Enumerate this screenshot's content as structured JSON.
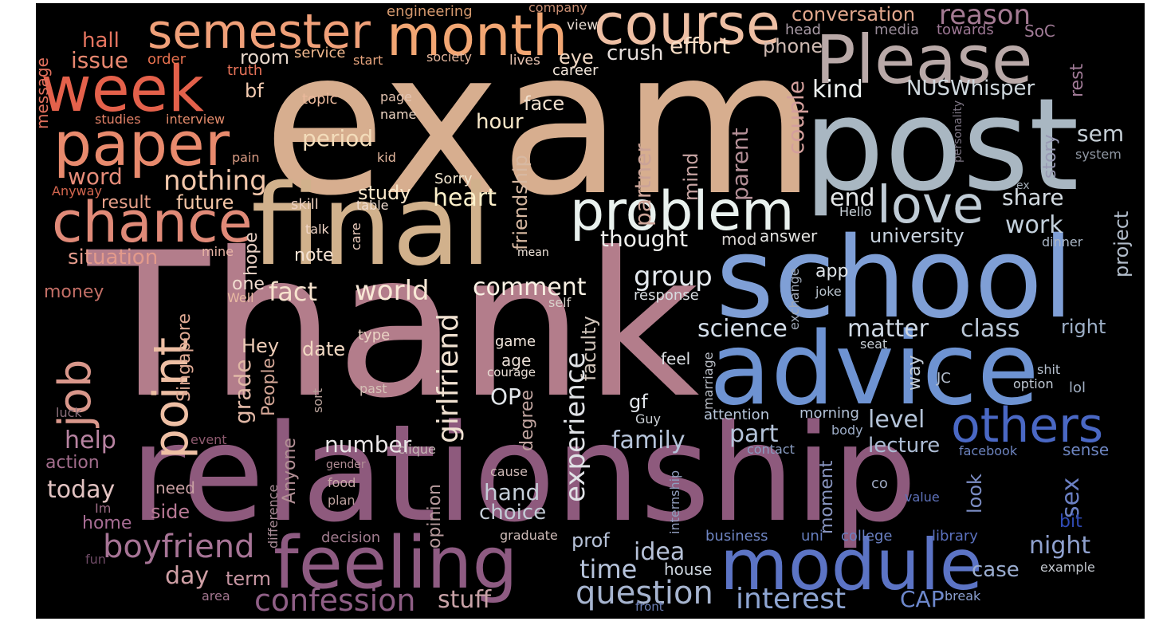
{
  "cloud": {
    "words": [
      {
        "text": "exam",
        "color": "#d7ae8f"
      },
      {
        "text": "Thank",
        "color": "#b37d8b"
      },
      {
        "text": "relationship",
        "color": "#8e5a7d"
      },
      {
        "text": "post",
        "color": "#a9b7c2"
      },
      {
        "text": "school",
        "color": "#7f9fd6"
      },
      {
        "text": "advice",
        "color": "#6e93d2"
      },
      {
        "text": "final",
        "color": "#d1b18c"
      },
      {
        "text": "Please",
        "color": "#b9a9a8"
      },
      {
        "text": "module",
        "color": "#5c74c5"
      },
      {
        "text": "feeling",
        "color": "#8e5b82"
      },
      {
        "text": "week",
        "color": "#e4614b"
      },
      {
        "text": "paper",
        "color": "#e88a6d"
      },
      {
        "text": "month",
        "color": "#f2a673"
      },
      {
        "text": "semester",
        "color": "#f0a079"
      },
      {
        "text": "course",
        "color": "#eebfa4"
      },
      {
        "text": "chance",
        "color": "#e08a78"
      },
      {
        "text": "problem",
        "color": "#e9f1ee"
      },
      {
        "text": "love",
        "color": "#c0ccd6"
      },
      {
        "text": "others",
        "color": "#4a68c4"
      },
      {
        "text": "point",
        "color": "#eebfa4"
      },
      {
        "text": "job",
        "color": "#d9978b"
      },
      {
        "text": "boyfriend",
        "color": "#a77496"
      },
      {
        "text": "confession",
        "color": "#8f5f86"
      },
      {
        "text": "question",
        "color": "#a6b4cf"
      },
      {
        "text": "interest",
        "color": "#8fa6d3"
      },
      {
        "text": "conversation",
        "color": "#e2a88e"
      },
      {
        "text": "reason",
        "color": "#a47a93"
      },
      {
        "text": "issue",
        "color": "#e98870"
      },
      {
        "text": "hall",
        "color": "#e87661"
      },
      {
        "text": "engineering",
        "color": "#d69a6f"
      },
      {
        "text": "company",
        "color": "#cb8f73"
      },
      {
        "text": "eye",
        "color": "#f1d8c3"
      },
      {
        "text": "crush",
        "color": "#e7dfdc"
      },
      {
        "text": "effort",
        "color": "#f7ddc6"
      },
      {
        "text": "phone",
        "color": "#cfbab2"
      },
      {
        "text": "head",
        "color": "#a89aa5"
      },
      {
        "text": "media",
        "color": "#9a8c9a"
      },
      {
        "text": "towards",
        "color": "#9c7693"
      },
      {
        "text": "SoC",
        "color": "#a17b97"
      },
      {
        "text": "rest",
        "color": "#a17b97"
      },
      {
        "text": "order",
        "color": "#e7714f"
      },
      {
        "text": "service",
        "color": "#f1b98e"
      },
      {
        "text": "start",
        "color": "#e8a57e"
      },
      {
        "text": "society",
        "color": "#e5b79e"
      },
      {
        "text": "lives",
        "color": "#e6c2b0"
      },
      {
        "text": "career",
        "color": "#f2e6da"
      },
      {
        "text": "view",
        "color": "#e7dcd2"
      },
      {
        "text": "room",
        "color": "#e7d7cb"
      },
      {
        "text": "truth",
        "color": "#e87359"
      },
      {
        "text": "message",
        "color": "#e0705d"
      },
      {
        "text": "bf",
        "color": "#f3cbb1"
      },
      {
        "text": "topic",
        "color": "#ebb99c"
      },
      {
        "text": "page",
        "color": "#e4c4b1"
      },
      {
        "text": "name",
        "color": "#eed6c4"
      },
      {
        "text": "studies",
        "color": "#e38268"
      },
      {
        "text": "interview",
        "color": "#e58c6c"
      },
      {
        "text": "kind",
        "color": "#eef2f1"
      },
      {
        "text": "NUSWhisper",
        "color": "#cfd8de"
      },
      {
        "text": "couple",
        "color": "#d39f9c"
      },
      {
        "text": "face",
        "color": "#f2e1cf"
      },
      {
        "text": "hour",
        "color": "#f8e8c9"
      },
      {
        "text": "period",
        "color": "#f3dcba"
      },
      {
        "text": "word",
        "color": "#e68c79"
      },
      {
        "text": "nothing",
        "color": "#f2c7ab"
      },
      {
        "text": "kid",
        "color": "#e5b89f"
      },
      {
        "text": "pain",
        "color": "#d99b83"
      },
      {
        "text": "Anyway",
        "color": "#d2654e"
      },
      {
        "text": "result",
        "color": "#e8a18a"
      },
      {
        "text": "future",
        "color": "#f4c6a6"
      },
      {
        "text": "skill",
        "color": "#edd0c0"
      },
      {
        "text": "table",
        "color": "#f0ddd1"
      },
      {
        "text": "Sorry",
        "color": "#f3e7d0"
      },
      {
        "text": "study",
        "color": "#fbe8cb"
      },
      {
        "text": "heart",
        "color": "#fdf1cb"
      },
      {
        "text": "friendship",
        "color": "#d8b9a2"
      },
      {
        "text": "partner",
        "color": "#cba397"
      },
      {
        "text": "mind",
        "color": "#c6a3a2"
      },
      {
        "text": "parent",
        "color": "#b48f97"
      },
      {
        "text": "end",
        "color": "#e5e7e8"
      },
      {
        "text": "share",
        "color": "#d3dbe2"
      },
      {
        "text": "story",
        "color": "#999ab4"
      },
      {
        "text": "sem",
        "color": "#c6cfd6"
      },
      {
        "text": "personality",
        "color": "#7e7685"
      },
      {
        "text": "system",
        "color": "#9098a4"
      },
      {
        "text": "ex",
        "color": "#a2acb6"
      },
      {
        "text": "Hello",
        "color": "#cbd3da"
      },
      {
        "text": "work",
        "color": "#c3d0dc"
      },
      {
        "text": "university",
        "color": "#c8d3df"
      },
      {
        "text": "project",
        "color": "#b2bdcb"
      },
      {
        "text": "dinner",
        "color": "#aab6c5"
      },
      {
        "text": "situation",
        "color": "#e39a8b"
      },
      {
        "text": "mine",
        "color": "#e9b5a6"
      },
      {
        "text": "talk",
        "color": "#f2d7c8"
      },
      {
        "text": "care",
        "color": "#ecccbd"
      },
      {
        "text": "mean",
        "color": "#f2e6dc"
      },
      {
        "text": "hope",
        "color": "#e8cfc3"
      },
      {
        "text": "note",
        "color": "#f5e2d3"
      },
      {
        "text": "thought",
        "color": "#f0f0ee"
      },
      {
        "text": "mod",
        "color": "#d9d5d2"
      },
      {
        "text": "answer",
        "color": "#e4e4e2"
      },
      {
        "text": "app",
        "color": "#dfe4e9"
      },
      {
        "text": "exchange",
        "color": "#9fa8b7"
      },
      {
        "text": "joke",
        "color": "#b9c3cd"
      },
      {
        "text": "money",
        "color": "#c36f66"
      },
      {
        "text": "Well",
        "color": "#e8b9a2"
      },
      {
        "text": "one",
        "color": "#f1ddd0"
      },
      {
        "text": "fact",
        "color": "#f6e2cd"
      },
      {
        "text": "world",
        "color": "#f8e8d6"
      },
      {
        "text": "comment",
        "color": "#f9f1e4"
      },
      {
        "text": "self",
        "color": "#d9d3cc"
      },
      {
        "text": "response",
        "color": "#d8dde1"
      },
      {
        "text": "group",
        "color": "#e4e9ee"
      },
      {
        "text": "Singapore",
        "color": "#dfa993"
      },
      {
        "text": "girlfriend",
        "color": "#f0e1d1"
      },
      {
        "text": "faculty",
        "color": "#cfc3b9"
      },
      {
        "text": "experience",
        "color": "#e0e2e6"
      },
      {
        "text": "science",
        "color": "#d4deea"
      },
      {
        "text": "matter",
        "color": "#cfd8e4"
      },
      {
        "text": "class",
        "color": "#b9c6d6"
      },
      {
        "text": "right",
        "color": "#9eb0c8"
      },
      {
        "text": "Hey",
        "color": "#eccbb6"
      },
      {
        "text": "date",
        "color": "#f2d9c3"
      },
      {
        "text": "type",
        "color": "#ead3c4"
      },
      {
        "text": "game",
        "color": "#f1e6dd"
      },
      {
        "text": "age",
        "color": "#e7dcd4"
      },
      {
        "text": "courage",
        "color": "#eadfd6"
      },
      {
        "text": "feel",
        "color": "#dfe3e7"
      },
      {
        "text": "seat",
        "color": "#c8cfd5"
      },
      {
        "text": "marriage",
        "color": "#b8bcc4"
      },
      {
        "text": "way",
        "color": "#c3ccd6"
      },
      {
        "text": "JC",
        "color": "#b2bccb"
      },
      {
        "text": "shit",
        "color": "#b5bfcd"
      },
      {
        "text": "option",
        "color": "#c0c9d4"
      },
      {
        "text": "lol",
        "color": "#a0aec2"
      },
      {
        "text": "grade",
        "color": "#e1b8a6"
      },
      {
        "text": "People",
        "color": "#d5a797"
      },
      {
        "text": "sort",
        "color": "#b7a19a"
      },
      {
        "text": "past",
        "color": "#d5c1b6"
      },
      {
        "text": "OP",
        "color": "#e2e6ea"
      },
      {
        "text": "degree",
        "color": "#c1a5a0"
      },
      {
        "text": "gf",
        "color": "#e1e5ea"
      },
      {
        "text": "Guy",
        "color": "#cfd4d9"
      },
      {
        "text": "attention",
        "color": "#b8c7dc"
      },
      {
        "text": "morning",
        "color": "#b3c2d7"
      },
      {
        "text": "luck",
        "color": "#8b6f7b"
      },
      {
        "text": "help",
        "color": "#b883a2"
      },
      {
        "text": "event",
        "color": "#8e5a6f"
      },
      {
        "text": "Anyone",
        "color": "#b28f95"
      },
      {
        "text": "clique",
        "color": "#c5b8b5"
      },
      {
        "text": "number",
        "color": "#e9e6e7"
      },
      {
        "text": "part",
        "color": "#b5c4da"
      },
      {
        "text": "family",
        "color": "#b6c4da"
      },
      {
        "text": "level",
        "color": "#b4c3d8"
      },
      {
        "text": "lecture",
        "color": "#adbdd5"
      },
      {
        "text": "body",
        "color": "#9eaec8"
      },
      {
        "text": "contact",
        "color": "#8a9dc2"
      },
      {
        "text": "facebook",
        "color": "#6d84bf"
      },
      {
        "text": "sense",
        "color": "#6e86c2"
      },
      {
        "text": "action",
        "color": "#a26d8c"
      },
      {
        "text": "gender",
        "color": "#b18d95"
      },
      {
        "text": "cause",
        "color": "#cdb8b5"
      },
      {
        "text": "internship",
        "color": "#8f9cbc"
      },
      {
        "text": "today",
        "color": "#e2c3c2"
      },
      {
        "text": "need",
        "color": "#c9a0a3"
      },
      {
        "text": "food",
        "color": "#c9aaa8"
      },
      {
        "text": "hand",
        "color": "#c5ced8"
      },
      {
        "text": "choice",
        "color": "#c3cbd5"
      },
      {
        "text": "opinion",
        "color": "#b79a9c"
      },
      {
        "text": "difference",
        "color": "#a78a95"
      },
      {
        "text": "moment",
        "color": "#8996c1"
      },
      {
        "text": "look",
        "color": "#7c8dc4"
      },
      {
        "text": "sex",
        "color": "#6b80c3"
      },
      {
        "text": "co",
        "color": "#9ba6bf"
      },
      {
        "text": "value",
        "color": "#5f73bc"
      },
      {
        "text": "bit",
        "color": "#2f4ab5"
      },
      {
        "text": "Im",
        "color": "#9c6b85"
      },
      {
        "text": "side",
        "color": "#b87995"
      },
      {
        "text": "home",
        "color": "#a66c93"
      },
      {
        "text": "plan",
        "color": "#bda29f"
      },
      {
        "text": "graduate",
        "color": "#cfbcb8"
      },
      {
        "text": "prof",
        "color": "#b7c2d8"
      },
      {
        "text": "idea",
        "color": "#b7c2d8"
      },
      {
        "text": "business",
        "color": "#6f86c4"
      },
      {
        "text": "uni",
        "color": "#677fc0"
      },
      {
        "text": "college",
        "color": "#6a80c2"
      },
      {
        "text": "library",
        "color": "#5a70bd"
      },
      {
        "text": "night",
        "color": "#8fa1cf"
      },
      {
        "text": "case",
        "color": "#9aaccf"
      },
      {
        "text": "example",
        "color": "#c3c8cf"
      },
      {
        "text": "fun",
        "color": "#6e4a65"
      },
      {
        "text": "decision",
        "color": "#a07b8e"
      },
      {
        "text": "day",
        "color": "#cf9fa5"
      },
      {
        "text": "term",
        "color": "#c695a2"
      },
      {
        "text": "house",
        "color": "#cbd3dc"
      },
      {
        "text": "time",
        "color": "#b7c4dc"
      },
      {
        "text": "area",
        "color": "#a37690"
      },
      {
        "text": "stuff",
        "color": "#c8a2a7"
      },
      {
        "text": "CAP",
        "color": "#6d88cc"
      },
      {
        "text": "break",
        "color": "#8b9fcf"
      },
      {
        "text": "front",
        "color": "#6c7fb6"
      }
    ]
  }
}
